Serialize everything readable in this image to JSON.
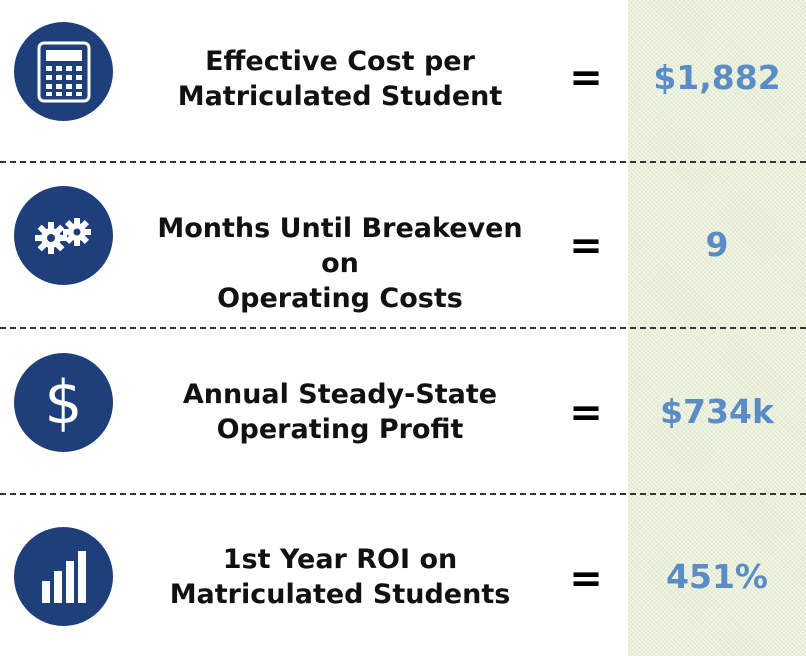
{
  "accent_colors": {
    "icon_circle": "#1f3f7b",
    "value_text": "#5b8cc5",
    "value_column_bg": "#e9efd9"
  },
  "metrics": [
    {
      "icon": "calculator-icon",
      "label_line1": "Effective Cost per",
      "label_line2": "Matriculated Student",
      "equals": "=",
      "value": "$1,882"
    },
    {
      "icon": "gears-icon",
      "label_line1": "Months Until Breakeven on",
      "label_line2": "Operating Costs",
      "equals": "=",
      "value": "9"
    },
    {
      "icon": "dollar-icon",
      "label_line1": "Annual Steady-State",
      "label_line2": "Operating Profit",
      "equals": "=",
      "value": "$734k"
    },
    {
      "icon": "bar-chart-icon",
      "label_line1": "1st Year ROI on",
      "label_line2": "Matriculated Students",
      "equals": "=",
      "value": "451%"
    }
  ]
}
